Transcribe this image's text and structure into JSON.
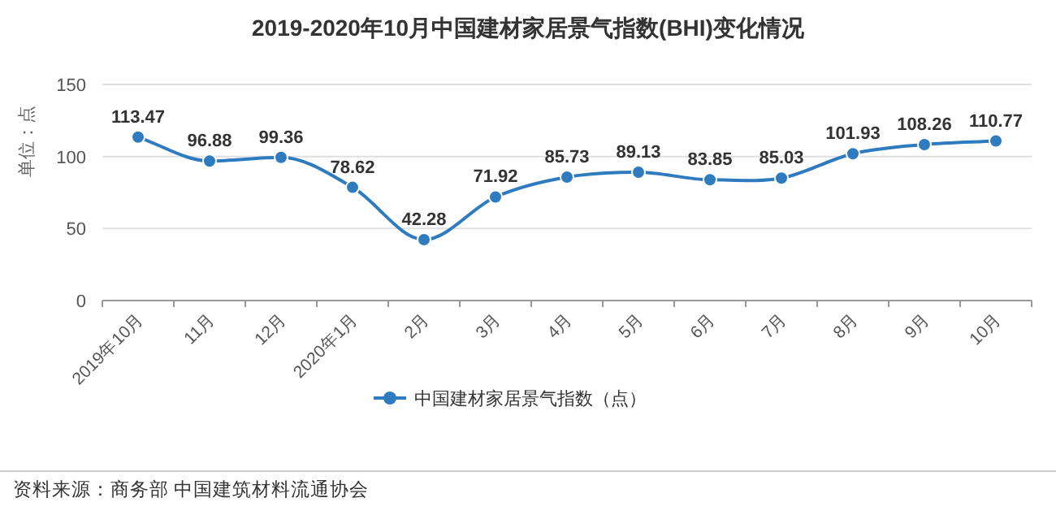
{
  "chart_data": {
    "type": "line",
    "title": "2019-2020年10月中国建材家居景气指数(BHI)变化情况",
    "ylabel": "单位：点",
    "categories": [
      "2019年10月",
      "11月",
      "12月",
      "2020年1月",
      "2月",
      "3月",
      "4月",
      "5月",
      "6月",
      "7月",
      "8月",
      "9月",
      "10月"
    ],
    "series": [
      {
        "name": "中国建材家居景气指数（点）",
        "color": "#2e7bbf",
        "values": [
          113.47,
          96.88,
          99.36,
          78.62,
          42.28,
          71.92,
          85.73,
          89.13,
          83.85,
          85.03,
          101.93,
          108.26,
          110.77
        ]
      }
    ],
    "ylim": [
      0,
      150
    ],
    "yticks": [
      0,
      50,
      100,
      150
    ],
    "grid": "y",
    "legend": "bottom",
    "marker": "circle",
    "line_style": "solid",
    "data_labels": true,
    "annotations": [
      "资料来源：商务部 中国建筑材料流通协会"
    ]
  }
}
